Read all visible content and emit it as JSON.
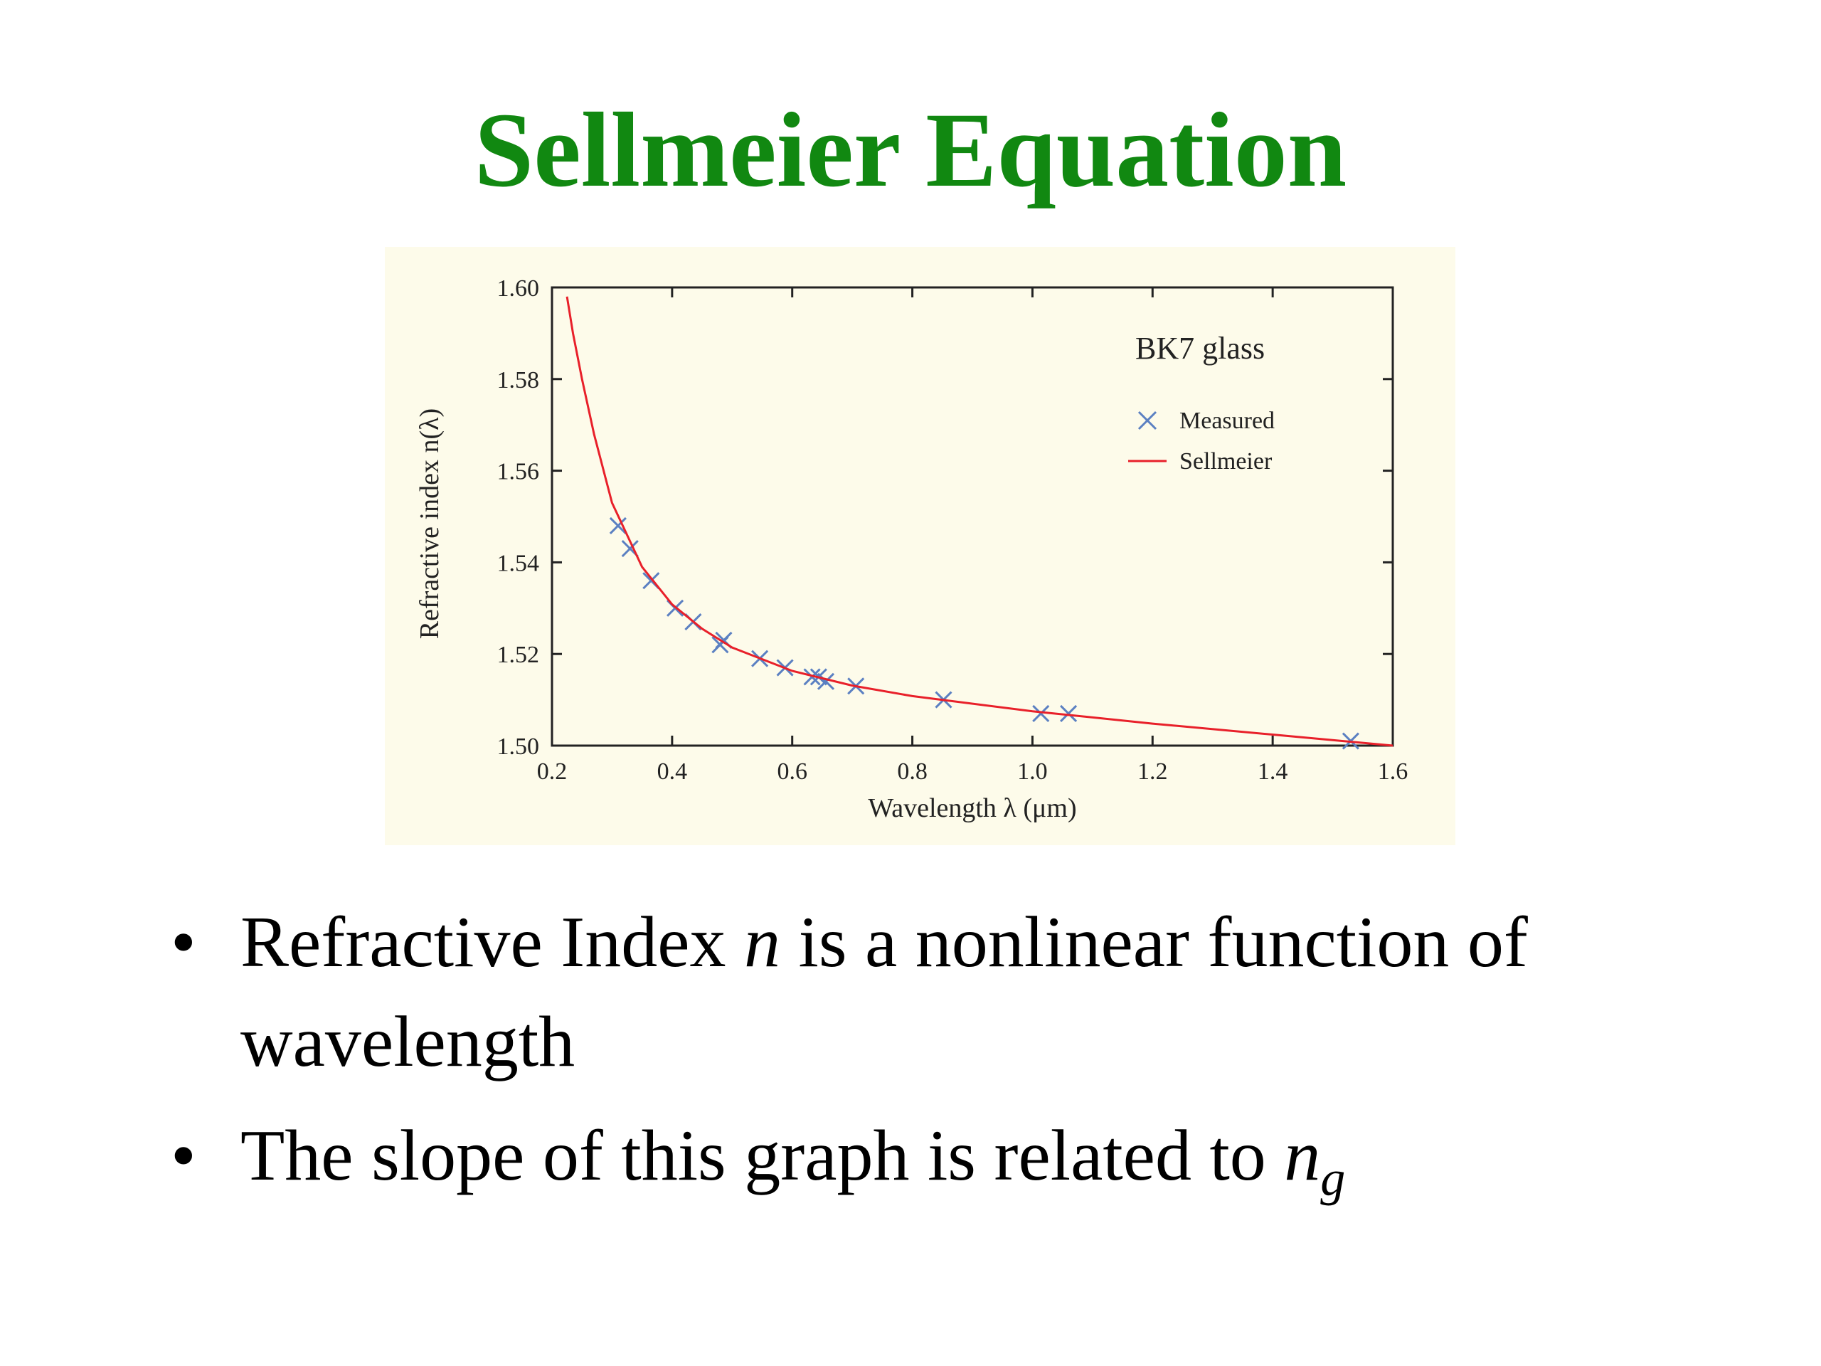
{
  "title": "Sellmeier Equation",
  "chart_data": {
    "type": "scatter",
    "legend_title": "BK7 glass",
    "xlabel": "Wavelength λ (μm)",
    "ylabel": "Refractive index n(λ)",
    "xlim": [
      0.2,
      1.6
    ],
    "ylim": [
      1.5,
      1.6
    ],
    "xticks": [
      0.2,
      0.4,
      0.6,
      0.8,
      {
        "value": 1.0,
        "label": "1.0"
      },
      1.2,
      1.4,
      1.6
    ],
    "yticks": [
      {
        "value": 1.5,
        "label": "1.50"
      },
      1.52,
      1.54,
      1.56,
      1.58,
      {
        "value": 1.6,
        "label": "1.60"
      }
    ],
    "legend": "upper right",
    "series": [
      {
        "name": "Measured",
        "type": "scatter",
        "color": "#5b80c2",
        "x": [
          0.31,
          0.33,
          0.365,
          0.405,
          0.435,
          0.48,
          0.486,
          0.546,
          0.588,
          0.633,
          0.644,
          0.656,
          0.706,
          0.852,
          1.014,
          1.06,
          1.53
        ],
        "values": [
          1.548,
          1.543,
          1.536,
          1.53,
          1.527,
          1.522,
          1.523,
          1.519,
          1.517,
          1.515,
          1.515,
          1.514,
          1.513,
          1.51,
          1.507,
          1.507,
          1.501
        ]
      },
      {
        "name": "Sellmeier",
        "type": "line",
        "color": "#e8202a",
        "x": [
          0.225,
          0.235,
          0.25,
          0.27,
          0.3,
          0.35,
          0.4,
          0.45,
          0.5,
          0.6,
          0.7,
          0.8,
          1.0,
          1.2,
          1.4,
          1.6
        ],
        "values": [
          1.598,
          1.59,
          1.58,
          1.568,
          1.553,
          1.539,
          1.5308,
          1.5255,
          1.5214,
          1.5163,
          1.5131,
          1.5108,
          1.5075,
          1.5048,
          1.5024,
          1.5
        ]
      }
    ]
  },
  "bullets": [
    [
      "Refractive Index ",
      "n",
      " is a nonlinear function of wavelength"
    ],
    [
      "The slope of this graph is related to ",
      "n",
      "g"
    ]
  ]
}
